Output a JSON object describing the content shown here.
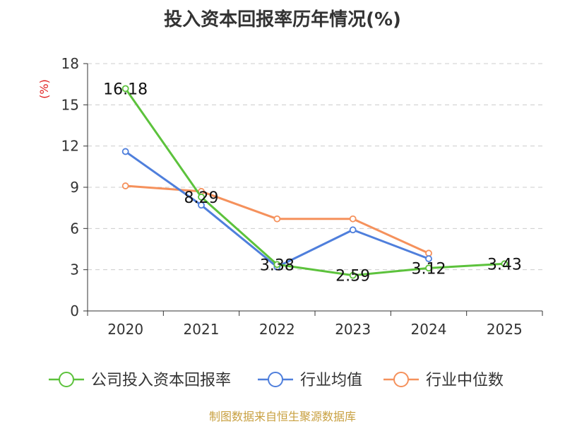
{
  "chart_data": {
    "type": "line",
    "title": "投入资本回报率历年情况(%)",
    "ylabel": "(%)",
    "xlabel": "",
    "categories": [
      "2020",
      "2021",
      "2022",
      "2023",
      "2024",
      "2025"
    ],
    "ylim": [
      0,
      18
    ],
    "yticks": [
      0,
      3,
      6,
      9,
      12,
      15,
      18
    ],
    "grid": true,
    "legend_position": "bottom",
    "series": [
      {
        "name": "公司投入资本回报率",
        "color": "#5cc23c",
        "values": [
          16.18,
          8.29,
          3.38,
          2.59,
          3.12,
          3.43
        ],
        "show_labels": true
      },
      {
        "name": "行业均值",
        "color": "#4f7fdc",
        "values": [
          11.6,
          7.7,
          3.2,
          5.9,
          3.8,
          null
        ],
        "show_labels": false
      },
      {
        "name": "行业中位数",
        "color": "#f5915c",
        "values": [
          9.1,
          8.7,
          6.7,
          6.7,
          4.2,
          null
        ],
        "show_labels": false
      }
    ],
    "source": "制图数据来自恒生聚源数据库"
  }
}
